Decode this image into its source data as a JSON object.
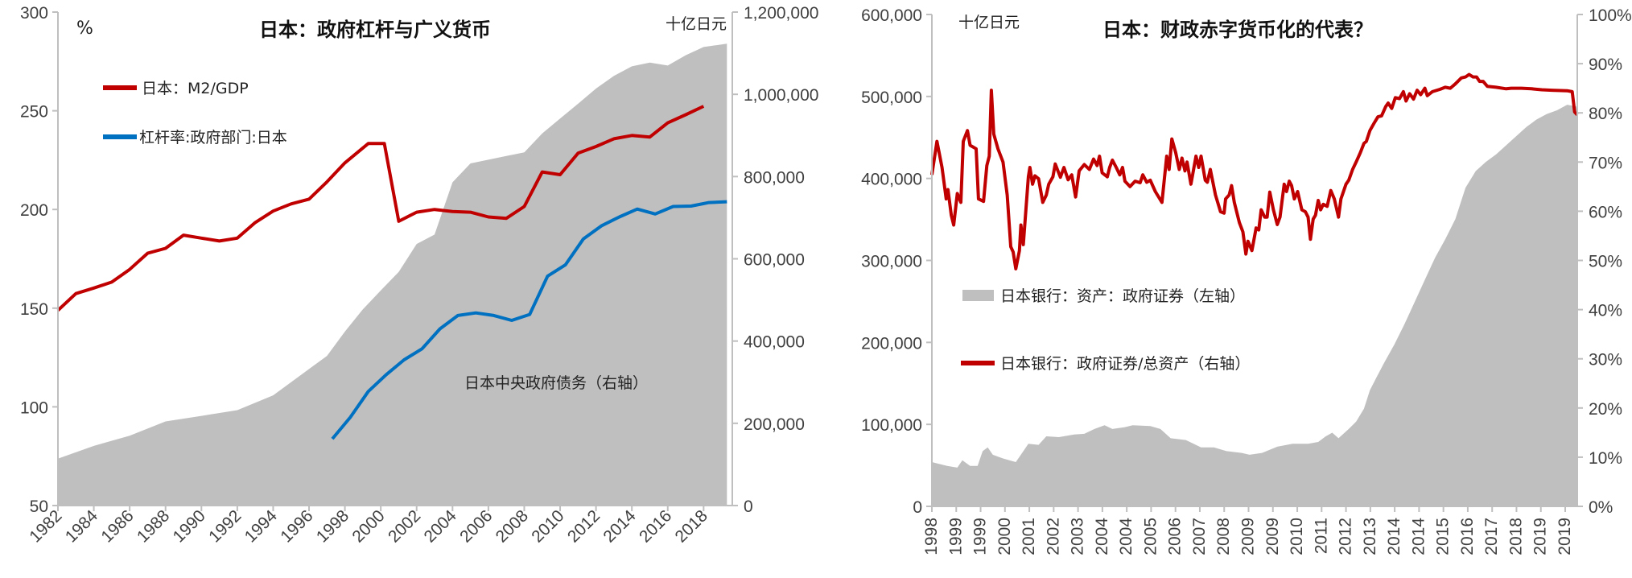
{
  "colors": {
    "red": "#C00000",
    "blue": "#0070C0",
    "area": "#BFBFBF",
    "axis": "#BFBFBF"
  },
  "chart_data": [
    {
      "type": "line+area",
      "title": "日本：政府杠杆与广义货币",
      "ylabel_left": "%",
      "ylabel_right": "十亿日元",
      "ylim_left": [
        50,
        300
      ],
      "yticks_left": [
        "300",
        "250",
        "200",
        "150",
        "100",
        "50"
      ],
      "ylim_right": [
        0,
        1200000
      ],
      "yticks_right": [
        "1,200,000",
        "1,000,000",
        "800,000",
        "600,000",
        "400,000",
        "200,000",
        "0"
      ],
      "xlim": [
        1982,
        2019.6
      ],
      "xticks": [
        "1982",
        "1984",
        "1986",
        "1988",
        "1990",
        "1992",
        "1994",
        "1996",
        "1998",
        "2000",
        "2002",
        "2004",
        "2006",
        "2008",
        "2010",
        "2012",
        "2014",
        "2016",
        "2018"
      ],
      "grid": false,
      "legend_placement": "top-left",
      "annotation": "日本中央政府债务（右轴）",
      "series": [
        {
          "name": "日本：M2/GDP",
          "axis": "left",
          "kind": "line",
          "color": "#C00000",
          "x": [
            1982,
            1983,
            1984,
            1985,
            1986,
            1987,
            1988,
            1989,
            1990,
            1991,
            1992,
            1993,
            1994,
            1995,
            1996,
            1997,
            1998,
            1999.3,
            2000.2,
            2001,
            2002,
            2003,
            2004,
            2005,
            2006,
            2007,
            2008,
            2009,
            2010,
            2011,
            2012,
            2013,
            2014,
            2015,
            2016,
            2017,
            2018
          ],
          "y": [
            148.9,
            157.4,
            160.2,
            163.2,
            169.6,
            177.8,
            180.3,
            187,
            185.5,
            184,
            185.5,
            193.4,
            199.2,
            202.8,
            205.2,
            214,
            223.6,
            233.4,
            233.4,
            194,
            198.6,
            200,
            199,
            198.6,
            196.2,
            195.5,
            201.5,
            219,
            217.6,
            228.5,
            231.9,
            235.8,
            237.5,
            236.7,
            243.9,
            248,
            252.3
          ]
        },
        {
          "name": "杠杆率:政府部门:日本",
          "axis": "left",
          "kind": "line",
          "color": "#0070C0",
          "x": [
            1997.3,
            1998.3,
            1999.3,
            2000.3,
            2001.3,
            2002.3,
            2003.3,
            2004.3,
            2005.3,
            2006.3,
            2007.3,
            2008.3,
            2009.3,
            2010.3,
            2011.3,
            2012.3,
            2013.3,
            2014.3,
            2015.3,
            2016.3,
            2017.3,
            2018.3,
            2019.3
          ],
          "y": [
            83.8,
            94.7,
            107.8,
            116.3,
            123.8,
            129.4,
            139.5,
            146.3,
            147.6,
            146.3,
            143.8,
            146.8,
            166.2,
            172,
            185.1,
            191.7,
            196.2,
            200.2,
            197.7,
            201.5,
            201.7,
            203.5,
            203.9
          ]
        },
        {
          "name": "日本中央政府债务（右轴）",
          "axis": "right",
          "kind": "area",
          "color": "#BFBFBF",
          "x": [
            1982,
            1984,
            1986,
            1988,
            1990,
            1992,
            1994,
            1996,
            1997,
            1998,
            1999,
            2000,
            2001,
            2002,
            2003,
            2004,
            2005,
            2006,
            2007,
            2008,
            2009,
            2010,
            2011,
            2012,
            2013,
            2014,
            2015,
            2016,
            2017,
            2018,
            2019.3
          ],
          "y": [
            114000,
            145000,
            170000,
            204500,
            218000,
            232000,
            268000,
            332000,
            364000,
            423000,
            477000,
            523000,
            568000,
            636000,
            659000,
            786000,
            832000,
            841000,
            850000,
            859000,
            905000,
            941000,
            977000,
            1014000,
            1045000,
            1068000,
            1077000,
            1070000,
            1095000,
            1115000,
            1123000
          ]
        }
      ]
    },
    {
      "type": "line+area",
      "title": "日本：财政赤字货币化的代表？",
      "ylabel_left": "十亿日元",
      "ylim_left": [
        0,
        600000
      ],
      "yticks_left": [
        "600,000",
        "500,000",
        "400,000",
        "300,000",
        "200,000",
        "100,000",
        "0"
      ],
      "ylim_right": [
        0,
        100
      ],
      "yticks_right": [
        "100%",
        "90%",
        "80%",
        "70%",
        "60%",
        "50%",
        "40%",
        "30%",
        "20%",
        "10%",
        "0%"
      ],
      "xlim": [
        1998,
        2019.6
      ],
      "xticks": [
        "1998",
        "1999",
        "1999",
        "2000",
        "2001",
        "2002",
        "2003",
        "2004",
        "2004",
        "2005",
        "2006",
        "2007",
        "2008",
        "2009",
        "2009",
        "2010",
        "2011",
        "2012",
        "2013",
        "2014",
        "2014",
        "2015",
        "2016",
        "2017",
        "2018",
        "2019",
        "2019"
      ],
      "grid": false,
      "legend_placement": "center-left",
      "series": [
        {
          "name": "日本银行：资产：政府证券（左轴）",
          "axis": "left",
          "kind": "area",
          "color": "#BFBFBF",
          "x": [
            1998.0,
            1998.51,
            1998.85,
            1999.02,
            1999.28,
            1999.53,
            1999.7,
            1999.87,
            2000.04,
            2000.38,
            2000.81,
            2000.98,
            2001.23,
            2001.57,
            2001.83,
            2002.25,
            2002.76,
            2003.1,
            2003.44,
            2003.78,
            2004.04,
            2004.46,
            2004.72,
            2005.31,
            2005.65,
            2005.99,
            2006.5,
            2007.01,
            2007.44,
            2007.86,
            2008.37,
            2008.63,
            2009.05,
            2009.56,
            2010.07,
            2010.59,
            2010.93,
            2011.18,
            2011.4,
            2011.61,
            2011.95,
            2012.2,
            2012.46,
            2012.66,
            2012.88,
            2013.14,
            2013.48,
            2013.82,
            2014.16,
            2014.5,
            2014.84,
            2015.18,
            2015.52,
            2015.86,
            2016.2,
            2016.54,
            2016.88,
            2017.22,
            2017.56,
            2017.9,
            2018.24,
            2018.58,
            2018.92,
            2019.26,
            2019.6
          ],
          "y": [
            54000,
            49400,
            47200,
            56200,
            49400,
            49400,
            67400,
            71900,
            62900,
            58400,
            54000,
            62900,
            76400,
            75000,
            85400,
            84500,
            87600,
            88500,
            94400,
            98900,
            94400,
            96600,
            98900,
            98000,
            94400,
            83100,
            80900,
            71900,
            71900,
            67400,
            65200,
            62900,
            65200,
            72800,
            76400,
            76400,
            78600,
            85400,
            89900,
            83100,
            94400,
            103400,
            119100,
            141600,
            157300,
            175300,
            197700,
            222500,
            249400,
            276400,
            303300,
            325800,
            350500,
            388700,
            409000,
            420200,
            429200,
            440400,
            451700,
            462900,
            471900,
            478600,
            483100,
            489900,
            487600
          ]
        },
        {
          "name": "日本银行：政府证券/总资产（右轴）",
          "axis": "right",
          "kind": "line",
          "color": "#C00000",
          "x": [
            1998.0,
            1998.17,
            1998.34,
            1998.48,
            1998.54,
            1998.65,
            1998.73,
            1998.85,
            1998.97,
            1999.05,
            1999.19,
            1999.28,
            1999.48,
            1999.56,
            1999.73,
            1999.84,
            1999.92,
            1999.99,
            2000.07,
            2000.21,
            2000.38,
            2000.52,
            2000.64,
            2000.72,
            2000.81,
            2000.93,
            2000.98,
            2001.06,
            2001.23,
            2001.28,
            2001.37,
            2001.45,
            2001.57,
            2001.71,
            2001.83,
            2001.91,
            2002.05,
            2002.13,
            2002.3,
            2002.42,
            2002.56,
            2002.68,
            2002.81,
            2002.93,
            2003.1,
            2003.27,
            2003.41,
            2003.53,
            2003.61,
            2003.7,
            2003.87,
            2003.95,
            2004.04,
            2004.17,
            2004.29,
            2004.38,
            2004.46,
            2004.63,
            2004.8,
            2004.97,
            2005.06,
            2005.19,
            2005.31,
            2005.48,
            2005.7,
            2005.86,
            2005.94,
            2006.03,
            2006.16,
            2006.28,
            2006.37,
            2006.47,
            2006.54,
            2006.67,
            2006.84,
            2006.93,
            2007.01,
            2007.15,
            2007.22,
            2007.32,
            2007.49,
            2007.66,
            2007.78,
            2007.83,
            2007.95,
            2008.03,
            2008.12,
            2008.29,
            2008.41,
            2008.51,
            2008.58,
            2008.71,
            2008.85,
            2008.94,
            2009.02,
            2009.14,
            2009.22,
            2009.31,
            2009.43,
            2009.56,
            2009.65,
            2009.79,
            2009.87,
            2009.96,
            2010.04,
            2010.13,
            2010.24,
            2010.38,
            2010.5,
            2010.59,
            2010.67,
            2010.76,
            2010.84,
            2010.93,
            2011.01,
            2011.1,
            2011.23,
            2011.35,
            2011.47,
            2011.61,
            2011.69,
            2011.86,
            2011.95,
            2012.08,
            2012.2,
            2012.34,
            2012.46,
            2012.54,
            2012.66,
            2012.8,
            2012.93,
            2013.05,
            2013.19,
            2013.27,
            2013.39,
            2013.51,
            2013.65,
            2013.78,
            2013.87,
            2013.99,
            2014.12,
            2014.24,
            2014.36,
            2014.5,
            2014.58,
            2014.75,
            2015.01,
            2015.18,
            2015.35,
            2015.52,
            2015.72,
            2015.86,
            2015.98,
            2016.11,
            2016.23,
            2016.33,
            2016.45,
            2016.59,
            2016.88,
            2017.22,
            2017.39,
            2017.73,
            2018.07,
            2018.41,
            2018.75,
            2019.26,
            2019.43,
            2019.51,
            2019.6
          ],
          "y": [
            67.4,
            74.2,
            68.9,
            62.5,
            64.4,
            59.2,
            57.2,
            63.6,
            61.8,
            74.2,
            76.4,
            73.4,
            72.7,
            62.5,
            62,
            69.3,
            71.2,
            84.6,
            75.7,
            72.7,
            70,
            63.3,
            52.8,
            51.7,
            48.3,
            52,
            57.2,
            53.2,
            67,
            68.9,
            65.5,
            67.2,
            66.6,
            61.8,
            63.3,
            65.5,
            67,
            69.6,
            66.9,
            68.9,
            66.4,
            67.4,
            62.9,
            68.2,
            69.5,
            68.5,
            70.6,
            69.3,
            71.2,
            67.8,
            67,
            68.9,
            70.4,
            68.9,
            67.4,
            68.9,
            66.1,
            65,
            66.1,
            65.8,
            67.4,
            65.9,
            66.3,
            64,
            61.8,
            71.2,
            68.5,
            74.7,
            71.9,
            68.5,
            70.8,
            68.2,
            70,
            65.5,
            71.2,
            68.9,
            71.2,
            66.3,
            65.9,
            68.5,
            63.3,
            59.9,
            59.6,
            62.5,
            63.3,
            65.2,
            61.8,
            57.7,
            55.8,
            51.3,
            53.9,
            52,
            56.6,
            56.2,
            60.3,
            58.8,
            58.8,
            63.9,
            60.3,
            57.3,
            58.8,
            65.5,
            64,
            66.1,
            65.2,
            62.5,
            64,
            60.3,
            59.9,
            58.8,
            54.3,
            58.4,
            59.2,
            62.2,
            60.3,
            61.4,
            61,
            64.2,
            62.5,
            58.8,
            62.5,
            65.5,
            66.3,
            68.5,
            70,
            71.9,
            73.8,
            74.2,
            76.4,
            77.9,
            79.2,
            79.4,
            81.3,
            82,
            80.9,
            83.1,
            82.9,
            84.3,
            82.4,
            83.9,
            82.8,
            84.6,
            83.7,
            85,
            83.5,
            84.3,
            84.8,
            85.2,
            85,
            85.9,
            87.1,
            87.3,
            87.8,
            87.3,
            87.3,
            86.4,
            86.4,
            85.4,
            85.2,
            84.9,
            85,
            85,
            84.9,
            84.7,
            84.6,
            84.5,
            84.3,
            80.2,
            79.6
          ]
        }
      ]
    }
  ]
}
